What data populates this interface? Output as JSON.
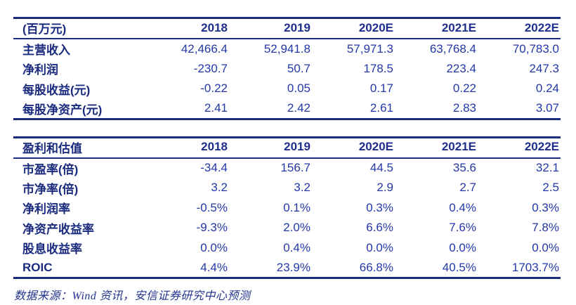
{
  "colors": {
    "rule_navy": "#1b2b7e",
    "header_text": "#1f2e8c",
    "label_text": "#1b2b7e",
    "number_text": "#2438a8",
    "background": "#ffffff"
  },
  "table1": {
    "unit_header": "(百万元)",
    "columns": [
      "2018",
      "2019",
      "2020E",
      "2021E",
      "2022E"
    ],
    "rows": [
      {
        "label": "主营收入",
        "values": [
          "42,466.4",
          "52,941.8",
          "57,971.3",
          "63,768.4",
          "70,783.0"
        ]
      },
      {
        "label": "净利润",
        "values": [
          "-230.7",
          "50.7",
          "178.5",
          "223.4",
          "247.3"
        ]
      },
      {
        "label": "每股收益(元)",
        "values": [
          "-0.22",
          "0.05",
          "0.17",
          "0.22",
          "0.24"
        ]
      },
      {
        "label": "每股净资产(元)",
        "values": [
          "2.41",
          "2.42",
          "2.61",
          "2.83",
          "3.07"
        ]
      }
    ]
  },
  "table2": {
    "unit_header": "盈利和估值",
    "columns": [
      "2018",
      "2019",
      "2020E",
      "2021E",
      "2022E"
    ],
    "rows": [
      {
        "label": "市盈率(倍)",
        "values": [
          "-34.4",
          "156.7",
          "44.5",
          "35.6",
          "32.1"
        ]
      },
      {
        "label": "市净率(倍)",
        "values": [
          "3.2",
          "3.2",
          "2.9",
          "2.7",
          "2.5"
        ]
      },
      {
        "label": "净利润率",
        "values": [
          "-0.5%",
          "0.1%",
          "0.3%",
          "0.4%",
          "0.3%"
        ]
      },
      {
        "label": "净资产收益率",
        "values": [
          "-9.3%",
          "2.0%",
          "6.6%",
          "7.6%",
          "7.8%"
        ]
      },
      {
        "label": "股息收益率",
        "values": [
          "0.0%",
          "0.4%",
          "0.0%",
          "0.0%",
          "0.0%"
        ]
      },
      {
        "label": "ROIC",
        "values": [
          "4.4%",
          "23.9%",
          "66.8%",
          "40.5%",
          "1703.7%"
        ]
      }
    ]
  },
  "footer": {
    "source_note": "数据来源：Wind 资讯，安信证券研究中心预测"
  },
  "chart_data": {
    "type": "table",
    "tables": [
      {
        "title": "(百万元)",
        "columns": [
          "2018",
          "2019",
          "2020E",
          "2021E",
          "2022E"
        ],
        "rows": [
          [
            "主营收入",
            42466.4,
            52941.8,
            57971.3,
            63768.4,
            70783.0
          ],
          [
            "净利润",
            -230.7,
            50.7,
            178.5,
            223.4,
            247.3
          ],
          [
            "每股收益(元)",
            -0.22,
            0.05,
            0.17,
            0.22,
            0.24
          ],
          [
            "每股净资产(元)",
            2.41,
            2.42,
            2.61,
            2.83,
            3.07
          ]
        ]
      },
      {
        "title": "盈利和估值",
        "columns": [
          "2018",
          "2019",
          "2020E",
          "2021E",
          "2022E"
        ],
        "rows": [
          [
            "市盈率(倍)",
            -34.4,
            156.7,
            44.5,
            35.6,
            32.1
          ],
          [
            "市净率(倍)",
            3.2,
            3.2,
            2.9,
            2.7,
            2.5
          ],
          [
            "净利润率(%)",
            -0.5,
            0.1,
            0.3,
            0.4,
            0.3
          ],
          [
            "净资产收益率(%)",
            -9.3,
            2.0,
            6.6,
            7.6,
            7.8
          ],
          [
            "股息收益率(%)",
            0.0,
            0.4,
            0.0,
            0.0,
            0.0
          ],
          [
            "ROIC(%)",
            4.4,
            23.9,
            66.8,
            40.5,
            1703.7
          ]
        ]
      }
    ]
  }
}
